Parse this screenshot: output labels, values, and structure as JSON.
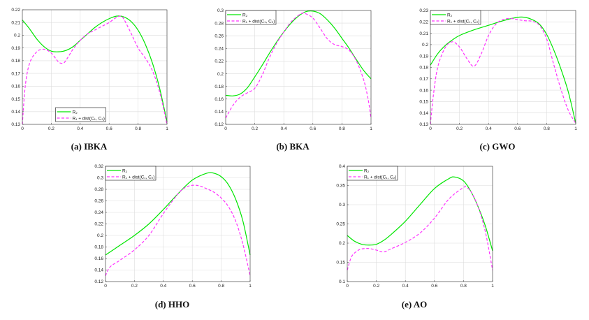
{
  "chart_data": [
    {
      "type": "line",
      "caption": "(a) IBKA",
      "xlim": [
        0,
        1
      ],
      "ylim": [
        0.13,
        0.22
      ],
      "xticks": [
        0,
        0.2,
        0.4,
        0.6,
        0.8,
        1
      ],
      "yticks": [
        0.13,
        0.14,
        0.15,
        0.16,
        0.17,
        0.18,
        0.19,
        0.2,
        0.21,
        0.22
      ],
      "grid": true,
      "legend_position": "bottom",
      "series": [
        {
          "name": "R₂",
          "color": "#00e600",
          "style": "solid",
          "x": [
            0,
            0.05,
            0.1,
            0.15,
            0.2,
            0.25,
            0.3,
            0.35,
            0.4,
            0.45,
            0.5,
            0.55,
            0.6,
            0.65,
            0.7,
            0.75,
            0.8,
            0.85,
            0.9,
            0.95,
            1
          ],
          "y": [
            0.212,
            0.205,
            0.197,
            0.191,
            0.1875,
            0.187,
            0.188,
            0.191,
            0.196,
            0.201,
            0.206,
            0.21,
            0.213,
            0.215,
            0.2145,
            0.211,
            0.204,
            0.193,
            0.178,
            0.158,
            0.132
          ]
        },
        {
          "name": "R₁ + dist(C₁, C₂)",
          "color": "#ff33ff",
          "style": "dashed",
          "x": [
            0,
            0.02,
            0.05,
            0.1,
            0.15,
            0.2,
            0.25,
            0.28,
            0.3,
            0.35,
            0.4,
            0.45,
            0.5,
            0.55,
            0.6,
            0.65,
            0.68,
            0.7,
            0.75,
            0.8,
            0.85,
            0.9,
            0.95,
            1
          ],
          "y": [
            0.13,
            0.16,
            0.178,
            0.187,
            0.189,
            0.186,
            0.179,
            0.178,
            0.18,
            0.189,
            0.196,
            0.201,
            0.204,
            0.207,
            0.21,
            0.214,
            0.215,
            0.213,
            0.202,
            0.19,
            0.182,
            0.172,
            0.155,
            0.13
          ]
        }
      ]
    },
    {
      "type": "line",
      "caption": "(b) BKA",
      "xlim": [
        0,
        1
      ],
      "ylim": [
        0.12,
        0.3
      ],
      "xticks": [
        0,
        0.2,
        0.4,
        0.6,
        0.8,
        1
      ],
      "yticks": [
        0.12,
        0.14,
        0.16,
        0.18,
        0.2,
        0.22,
        0.24,
        0.26,
        0.28,
        0.3
      ],
      "grid": true,
      "legend_position": "top-left",
      "series": [
        {
          "name": "R₂",
          "color": "#00e600",
          "style": "solid",
          "x": [
            0,
            0.05,
            0.1,
            0.15,
            0.2,
            0.25,
            0.3,
            0.35,
            0.4,
            0.45,
            0.5,
            0.55,
            0.6,
            0.65,
            0.7,
            0.75,
            0.8,
            0.85,
            0.9,
            0.95,
            1
          ],
          "y": [
            0.166,
            0.165,
            0.168,
            0.178,
            0.195,
            0.213,
            0.232,
            0.25,
            0.266,
            0.28,
            0.291,
            0.298,
            0.299,
            0.295,
            0.285,
            0.272,
            0.256,
            0.24,
            0.222,
            0.205,
            0.192
          ]
        },
        {
          "name": "R₁ + dist(C₁, C₂)",
          "color": "#ff33ff",
          "style": "dashed",
          "x": [
            0,
            0.05,
            0.1,
            0.15,
            0.2,
            0.25,
            0.3,
            0.35,
            0.4,
            0.45,
            0.5,
            0.53,
            0.55,
            0.6,
            0.65,
            0.7,
            0.75,
            0.8,
            0.85,
            0.9,
            0.95,
            0.98,
            1
          ],
          "y": [
            0.13,
            0.15,
            0.163,
            0.17,
            0.177,
            0.197,
            0.225,
            0.248,
            0.266,
            0.282,
            0.292,
            0.296,
            0.295,
            0.288,
            0.272,
            0.255,
            0.246,
            0.243,
            0.237,
            0.22,
            0.19,
            0.16,
            0.13
          ]
        }
      ]
    },
    {
      "type": "line",
      "caption": "(c) GWO",
      "xlim": [
        0,
        1
      ],
      "ylim": [
        0.13,
        0.23
      ],
      "xticks": [
        0,
        0.2,
        0.4,
        0.6,
        0.8,
        1
      ],
      "yticks": [
        0.13,
        0.14,
        0.15,
        0.16,
        0.17,
        0.18,
        0.19,
        0.2,
        0.21,
        0.22,
        0.23
      ],
      "grid": true,
      "legend_position": "top-left",
      "series": [
        {
          "name": "R₂",
          "color": "#00e600",
          "style": "solid",
          "x": [
            0,
            0.05,
            0.1,
            0.15,
            0.2,
            0.3,
            0.4,
            0.5,
            0.6,
            0.65,
            0.7,
            0.75,
            0.8,
            0.85,
            0.9,
            0.95,
            1
          ],
          "y": [
            0.182,
            0.192,
            0.199,
            0.204,
            0.208,
            0.213,
            0.217,
            0.221,
            0.224,
            0.224,
            0.222,
            0.218,
            0.209,
            0.195,
            0.178,
            0.158,
            0.131
          ]
        },
        {
          "name": "R₁ + dist(C₁, C₂)",
          "color": "#ff33ff",
          "style": "dashed",
          "x": [
            0,
            0.02,
            0.05,
            0.1,
            0.15,
            0.2,
            0.25,
            0.3,
            0.35,
            0.4,
            0.45,
            0.5,
            0.55,
            0.6,
            0.65,
            0.7,
            0.75,
            0.8,
            0.85,
            0.9,
            0.95,
            1
          ],
          "y": [
            0.13,
            0.155,
            0.18,
            0.197,
            0.2025,
            0.198,
            0.188,
            0.181,
            0.192,
            0.208,
            0.218,
            0.222,
            0.223,
            0.222,
            0.221,
            0.2205,
            0.217,
            0.205,
            0.182,
            0.16,
            0.142,
            0.131
          ]
        }
      ]
    },
    {
      "type": "line",
      "caption": "(d) HHO",
      "xlim": [
        0,
        1
      ],
      "ylim": [
        0.12,
        0.32
      ],
      "xticks": [
        0,
        0.2,
        0.4,
        0.6,
        0.8,
        1
      ],
      "yticks": [
        0.12,
        0.14,
        0.16,
        0.18,
        0.2,
        0.22,
        0.24,
        0.26,
        0.28,
        0.3,
        0.32
      ],
      "grid": true,
      "legend_position": "top-left",
      "series": [
        {
          "name": "R₂",
          "color": "#00e600",
          "style": "solid",
          "x": [
            0,
            0.1,
            0.2,
            0.3,
            0.4,
            0.5,
            0.6,
            0.7,
            0.75,
            0.8,
            0.85,
            0.9,
            0.95,
            1
          ],
          "y": [
            0.166,
            0.183,
            0.2,
            0.22,
            0.245,
            0.272,
            0.296,
            0.308,
            0.308,
            0.302,
            0.288,
            0.263,
            0.225,
            0.166
          ]
        },
        {
          "name": "R₁ + dist(C₁, C₂)",
          "color": "#ff33ff",
          "style": "dashed",
          "x": [
            0,
            0.03,
            0.1,
            0.2,
            0.3,
            0.4,
            0.5,
            0.55,
            0.6,
            0.65,
            0.7,
            0.75,
            0.8,
            0.85,
            0.9,
            0.95,
            1
          ],
          "y": [
            0.13,
            0.145,
            0.157,
            0.175,
            0.2,
            0.238,
            0.272,
            0.283,
            0.287,
            0.286,
            0.281,
            0.275,
            0.265,
            0.25,
            0.225,
            0.185,
            0.13
          ]
        }
      ]
    },
    {
      "type": "line",
      "caption": "(e) AO",
      "xlim": [
        0,
        1
      ],
      "ylim": [
        0.1,
        0.4
      ],
      "xticks": [
        0,
        0.2,
        0.4,
        0.6,
        0.8,
        1
      ],
      "yticks": [
        0.1,
        0.15,
        0.2,
        0.25,
        0.3,
        0.35,
        0.4
      ],
      "grid": true,
      "legend_position": "top-left",
      "series": [
        {
          "name": "R₂",
          "color": "#00e600",
          "style": "solid",
          "x": [
            0,
            0.05,
            0.1,
            0.15,
            0.2,
            0.25,
            0.3,
            0.4,
            0.5,
            0.6,
            0.7,
            0.74,
            0.8,
            0.85,
            0.9,
            0.95,
            1
          ],
          "y": [
            0.22,
            0.205,
            0.197,
            0.195,
            0.197,
            0.207,
            0.222,
            0.257,
            0.3,
            0.342,
            0.368,
            0.372,
            0.362,
            0.335,
            0.295,
            0.245,
            0.18
          ]
        },
        {
          "name": "R₁ + dist(C₁, C₂)",
          "color": "#ff33ff",
          "style": "dashed",
          "x": [
            0,
            0.03,
            0.07,
            0.1,
            0.15,
            0.2,
            0.25,
            0.3,
            0.4,
            0.5,
            0.6,
            0.7,
            0.8,
            0.82,
            0.85,
            0.9,
            0.95,
            1
          ],
          "y": [
            0.13,
            0.165,
            0.18,
            0.185,
            0.186,
            0.182,
            0.177,
            0.185,
            0.202,
            0.226,
            0.265,
            0.315,
            0.345,
            0.345,
            0.335,
            0.295,
            0.23,
            0.13
          ]
        }
      ]
    }
  ]
}
